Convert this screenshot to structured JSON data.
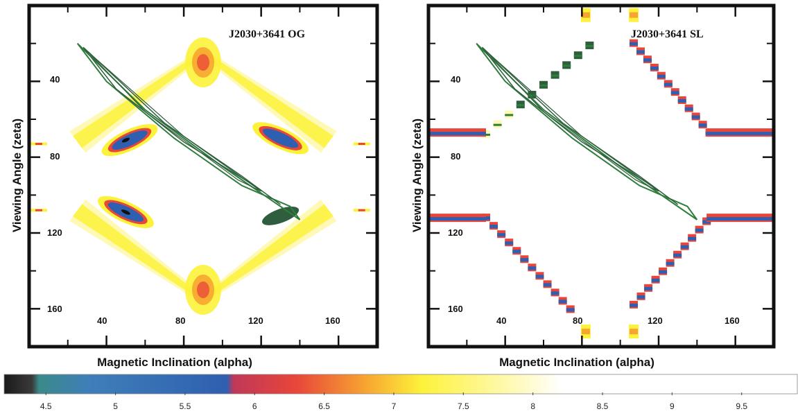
{
  "chart_data": [
    {
      "type": "heatmap",
      "title": "J2030+3641 OG",
      "xlabel": "Magnetic Inclination (alpha)",
      "ylabel": "Viewing Angle (zeta)",
      "xlim": [
        0,
        180
      ],
      "ylim": [
        0,
        180
      ],
      "y_inverted": true,
      "x_ticks": [
        "40",
        "80",
        "120",
        "160"
      ],
      "y_ticks": [
        "40",
        "80",
        "120",
        "160"
      ],
      "features": "X-shaped likelihood ridge centred on alpha~90; best-fit blue islands near (50,73),(50,107),(130,73); green radio-fit contour band running from (25,20) to (135,112)"
    },
    {
      "type": "heatmap",
      "title": "J2030+3641 SL",
      "xlabel": "Magnetic Inclination (alpha)",
      "ylabel": "Viewing Angle (zeta)",
      "xlim": [
        0,
        180
      ],
      "ylim": [
        0,
        180
      ],
      "y_inverted": true,
      "x_ticks": [
        "40",
        "80",
        "120",
        "160"
      ],
      "y_ticks": [
        "40",
        "80",
        "120",
        "160"
      ],
      "features": "staircase X-shaped ridge; horizontal bands at zeta~68 and ~112 for alpha<25 and alpha>145; green radio-fit contour band from (25,20) to (135,112)"
    }
  ],
  "colorbar": {
    "ticks": [
      "4.5",
      "5",
      "5.5",
      "6",
      "6.5",
      "7",
      "7.5",
      "8",
      "8.5",
      "9",
      "9.5"
    ],
    "range": [
      4.2,
      9.9
    ],
    "stops": [
      {
        "v": 4.2,
        "c": "#1a1a1a"
      },
      {
        "v": 4.4,
        "c": "#3a3a3a"
      },
      {
        "v": 4.45,
        "c": "#3b8a8a"
      },
      {
        "v": 4.8,
        "c": "#3f7fb8"
      },
      {
        "v": 5.8,
        "c": "#2f5fb0"
      },
      {
        "v": 5.85,
        "c": "#c03858"
      },
      {
        "v": 6.3,
        "c": "#e8463a"
      },
      {
        "v": 6.8,
        "c": "#f7a531"
      },
      {
        "v": 7.2,
        "c": "#fdf23a"
      },
      {
        "v": 7.9,
        "c": "#fffac0"
      },
      {
        "v": 8.2,
        "c": "#ffffff"
      },
      {
        "v": 9.9,
        "c": "#ffffff"
      }
    ]
  },
  "colors": {
    "blue": "#2f5fb0",
    "red": "#e8463a",
    "orange": "#f7a531",
    "yellow": "#fdf23a",
    "paleyellow": "#fff8b0",
    "green": "#2f7d3a",
    "darkgreen": "#2e5e3e"
  }
}
